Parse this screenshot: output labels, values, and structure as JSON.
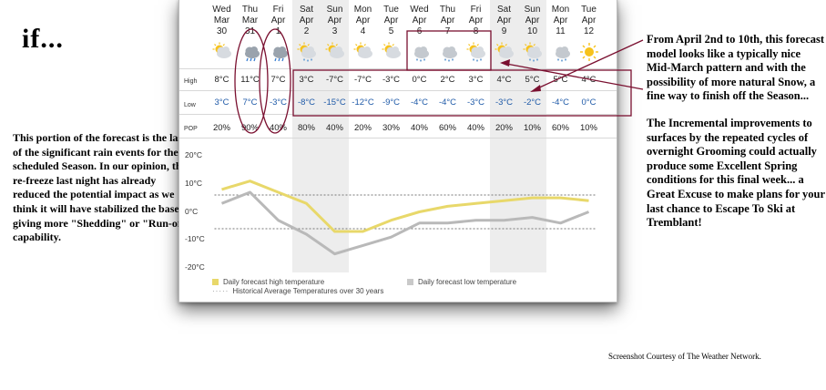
{
  "heading": "if...",
  "left_note": "This portion of the forecast is the last of the significant rain events for the scheduled Season. In our opinion, the re-freeze last night has already reduced the potential impact as we think it will have stabilized the base, giving more \"Shedding\" or \"Run-off\" capability.",
  "right_note_1": "From April 2nd to 10th, this forecast model looks like a typically nice Mid-March pattern and with the possibility of more natural Snow, a fine way to finish off the Season...",
  "right_note_2": "The Incremental improvements to surfaces by the repeated cycles of overnight Grooming could actually produce some Excellent Spring conditions for this final week... a Great Excuse to make plans for your last chance to Escape To Ski at Tremblant!",
  "credit": "Screenshot Courtesy of The Weather Network.",
  "colors": {
    "high_line": "#e8d86a",
    "low_line": "#b9b9b9",
    "annotation": "#7a1030",
    "low_text": "#1f5aa8"
  },
  "forecast": {
    "labels": {
      "high": "High",
      "low": "Low",
      "pop": "POP"
    },
    "days": [
      {
        "dow": "Wed",
        "mon": "Mar",
        "date": "30",
        "icon": "sun-cloud-icon",
        "high": "8°C",
        "low": "3°C",
        "pop": "20%",
        "weekend": false
      },
      {
        "dow": "Thu",
        "mon": "Mar",
        "date": "31",
        "icon": "cloud-rain-icon",
        "high": "11°C",
        "low": "7°C",
        "pop": "90%",
        "weekend": false
      },
      {
        "dow": "Fri",
        "mon": "Apr",
        "date": "1",
        "icon": "cloud-rain-icon",
        "high": "7°C",
        "low": "-3°C",
        "pop": "40%",
        "weekend": false
      },
      {
        "dow": "Sat",
        "mon": "Apr",
        "date": "2",
        "icon": "sun-snow-icon",
        "high": "3°C",
        "low": "-8°C",
        "pop": "80%",
        "weekend": true
      },
      {
        "dow": "Sun",
        "mon": "Apr",
        "date": "3",
        "icon": "sun-cloud-icon",
        "high": "-7°C",
        "low": "-15°C",
        "pop": "40%",
        "weekend": true
      },
      {
        "dow": "Mon",
        "mon": "Apr",
        "date": "4",
        "icon": "sun-cloud-icon",
        "high": "-7°C",
        "low": "-12°C",
        "pop": "20%",
        "weekend": false
      },
      {
        "dow": "Tue",
        "mon": "Apr",
        "date": "5",
        "icon": "sun-cloud-icon",
        "high": "-3°C",
        "low": "-9°C",
        "pop": "30%",
        "weekend": false
      },
      {
        "dow": "Wed",
        "mon": "Apr",
        "date": "6",
        "icon": "cloud-snow-icon",
        "high": "0°C",
        "low": "-4°C",
        "pop": "40%",
        "weekend": false
      },
      {
        "dow": "Thu",
        "mon": "Apr",
        "date": "7",
        "icon": "cloud-snow-icon",
        "high": "2°C",
        "low": "-4°C",
        "pop": "60%",
        "weekend": false
      },
      {
        "dow": "Fri",
        "mon": "Apr",
        "date": "8",
        "icon": "sun-snow-icon",
        "high": "3°C",
        "low": "-3°C",
        "pop": "40%",
        "weekend": false
      },
      {
        "dow": "Sat",
        "mon": "Apr",
        "date": "9",
        "icon": "sun-cloud-icon",
        "high": "4°C",
        "low": "-3°C",
        "pop": "20%",
        "weekend": true
      },
      {
        "dow": "Sun",
        "mon": "Apr",
        "date": "10",
        "icon": "sun-snow-icon",
        "high": "5°C",
        "low": "-2°C",
        "pop": "10%",
        "weekend": true
      },
      {
        "dow": "Mon",
        "mon": "Apr",
        "date": "11",
        "icon": "cloud-snow-icon",
        "high": "5°C",
        "low": "-4°C",
        "pop": "60%",
        "weekend": false
      },
      {
        "dow": "Tue",
        "mon": "Apr",
        "date": "12",
        "icon": "sun-icon",
        "high": "4°C",
        "low": "0°C",
        "pop": "10%",
        "weekend": false
      }
    ],
    "y_ticks": [
      "20°C",
      "10°C",
      "0°C",
      "-10°C",
      "-20°C"
    ],
    "legend": {
      "high": "Daily forecast high temperature",
      "low": "Daily forecast low temperature",
      "hist": "Historical Average Temperatures over 30 years"
    }
  },
  "chart_data": {
    "type": "line",
    "categories": [
      "Mar 30",
      "Mar 31",
      "Apr 1",
      "Apr 2",
      "Apr 3",
      "Apr 4",
      "Apr 5",
      "Apr 6",
      "Apr 7",
      "Apr 8",
      "Apr 9",
      "Apr 10",
      "Apr 11",
      "Apr 12"
    ],
    "series": [
      {
        "name": "Daily forecast high temperature",
        "values": [
          8,
          11,
          7,
          3,
          -7,
          -7,
          -3,
          0,
          2,
          3,
          4,
          5,
          5,
          4
        ]
      },
      {
        "name": "Daily forecast low temperature",
        "values": [
          3,
          7,
          -3,
          -8,
          -15,
          -12,
          -9,
          -4,
          -4,
          -3,
          -3,
          -2,
          -4,
          0
        ]
      }
    ],
    "ylim": [
      -20,
      20
    ],
    "y_ticks": [
      20,
      10,
      0,
      -10,
      -20
    ],
    "historical_reference_lines": [
      6,
      -6
    ],
    "grid": false,
    "legend_position": "bottom"
  }
}
